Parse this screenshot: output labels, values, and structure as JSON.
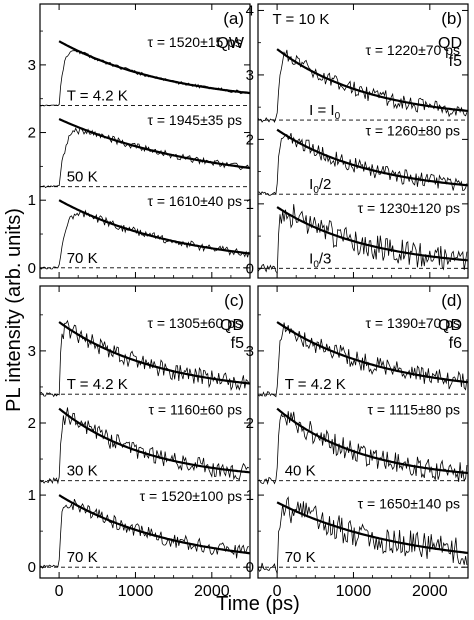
{
  "figure": {
    "ylabel": "PL intensity (arb. units)",
    "xlabel": "Time (ps)"
  },
  "chart_data": [
    {
      "id": "a",
      "type": "line",
      "panel_label": "(a)",
      "sample_label": [
        "QW"
      ],
      "header_label": "",
      "xlim": [
        -250,
        2500
      ],
      "ylim": [
        -0.15,
        3.9
      ],
      "x_ticks": [
        0,
        1000,
        2000
      ],
      "x_tick_labels": [
        "0",
        "1000",
        "2000"
      ],
      "y_ticks": [
        0,
        1,
        2,
        3
      ],
      "y_tick_labels": [
        "0",
        "1",
        "2",
        "3"
      ],
      "traces": [
        {
          "condition": "T = 4.2 K",
          "tau_label": "τ = 1520±15 ps",
          "tau_ps": 1520,
          "baseline": 2.4,
          "amplitude": 0.95,
          "rise_ps": 60,
          "noise": 0.025,
          "seed": 11
        },
        {
          "condition": "50 K",
          "tau_label": "τ = 1945±35 ps",
          "tau_ps": 1945,
          "baseline": 1.2,
          "amplitude": 1.0,
          "rise_ps": 90,
          "noise": 0.05,
          "seed": 12
        },
        {
          "condition": "70 K",
          "tau_label": "τ = 1610±40 ps",
          "tau_ps": 1610,
          "baseline": 0.0,
          "amplitude": 1.0,
          "rise_ps": 90,
          "noise": 0.06,
          "seed": 13
        }
      ]
    },
    {
      "id": "b",
      "type": "line",
      "panel_label": "(b)",
      "sample_label": [
        "QD",
        "f5"
      ],
      "header_label": "T = 10 K",
      "xlim": [
        -250,
        2500
      ],
      "ylim": [
        -0.15,
        4.1
      ],
      "x_ticks": [
        0,
        1000,
        2000
      ],
      "x_tick_labels": [
        "0",
        "1000",
        "2000"
      ],
      "y_ticks": [
        0,
        1,
        2,
        3,
        4
      ],
      "y_tick_labels": [
        "0",
        "1",
        "2",
        "3",
        "4"
      ],
      "traces": [
        {
          "condition": "I = I0",
          "tau_label": "τ = 1220±70 ps",
          "tau_ps": 1220,
          "baseline": 2.3,
          "amplitude": 1.1,
          "rise_ps": 30,
          "noise": 0.12,
          "seed": 21
        },
        {
          "condition": "I0/2",
          "tau_label": "τ = 1260±80 ps",
          "tau_ps": 1260,
          "baseline": 1.15,
          "amplitude": 1.0,
          "rise_ps": 30,
          "noise": 0.12,
          "seed": 22
        },
        {
          "condition": "I0/3",
          "tau_label": "τ = 1230±120 ps",
          "tau_ps": 1230,
          "baseline": 0.0,
          "amplitude": 0.95,
          "rise_ps": 30,
          "noise": 0.2,
          "seed": 23
        }
      ]
    },
    {
      "id": "c",
      "type": "line",
      "panel_label": "(c)",
      "sample_label": [
        "QD",
        "f5"
      ],
      "header_label": "",
      "xlim": [
        -250,
        2500
      ],
      "ylim": [
        -0.15,
        3.9
      ],
      "x_ticks": [
        0,
        1000,
        2000
      ],
      "x_tick_labels": [
        "0",
        "1000",
        "2000"
      ],
      "y_ticks": [
        0,
        1,
        2,
        3
      ],
      "y_tick_labels": [
        "0",
        "1",
        "2",
        "3"
      ],
      "traces": [
        {
          "condition": "T = 4.2 K",
          "tau_label": "τ = 1305±60 ps",
          "tau_ps": 1305,
          "baseline": 2.4,
          "amplitude": 1.0,
          "rise_ps": 25,
          "noise": 0.12,
          "seed": 31
        },
        {
          "condition": "30 K",
          "tau_label": "τ = 1160±60 ps",
          "tau_ps": 1160,
          "baseline": 1.2,
          "amplitude": 1.0,
          "rise_ps": 25,
          "noise": 0.12,
          "seed": 32
        },
        {
          "condition": "70 K",
          "tau_label": "τ = 1520±100 ps",
          "tau_ps": 1520,
          "baseline": 0.0,
          "amplitude": 1.0,
          "rise_ps": 25,
          "noise": 0.1,
          "seed": 33
        }
      ]
    },
    {
      "id": "d",
      "type": "line",
      "panel_label": "(d)",
      "sample_label": [
        "QD",
        "f6"
      ],
      "header_label": "",
      "xlim": [
        -250,
        2500
      ],
      "ylim": [
        -0.15,
        3.9
      ],
      "x_ticks": [
        0,
        1000,
        2000
      ],
      "x_tick_labels": [
        "0",
        "1000",
        "2000"
      ],
      "y_ticks": [
        0,
        1,
        2,
        3
      ],
      "y_tick_labels": [
        "0",
        "1",
        "2",
        "3"
      ],
      "traces": [
        {
          "condition": "T = 4.2 K",
          "tau_label": "τ = 1390±70 ps",
          "tau_ps": 1390,
          "baseline": 2.4,
          "amplitude": 1.0,
          "rise_ps": 25,
          "noise": 0.13,
          "seed": 41
        },
        {
          "condition": "40 K",
          "tau_label": "τ = 1115±80 ps",
          "tau_ps": 1115,
          "baseline": 1.2,
          "amplitude": 1.0,
          "rise_ps": 25,
          "noise": 0.15,
          "seed": 42
        },
        {
          "condition": "70 K",
          "tau_label": "τ = 1650±140 ps",
          "tau_ps": 1650,
          "baseline": 0.0,
          "amplitude": 0.9,
          "rise_ps": 25,
          "noise": 0.2,
          "seed": 43
        }
      ]
    }
  ]
}
